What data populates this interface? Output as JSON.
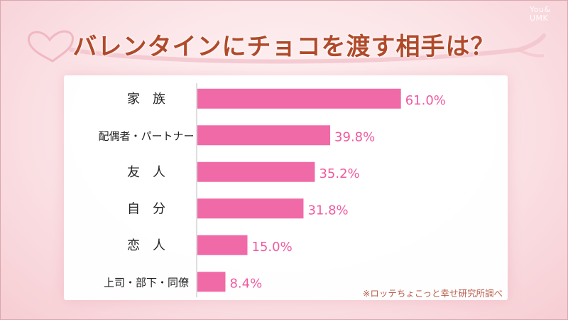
{
  "watermark": {
    "line1": "You&",
    "line2": "UMK"
  },
  "title": "バレンタインにチョコを渡す相手は？",
  "source": "※ロッテちょこっと幸せ研究所調べ",
  "colors": {
    "bar": "#f06aa8",
    "value_text": "#f05aa0",
    "label_text": "#222222",
    "axis": "#bdbdbd"
  },
  "chart_data": {
    "type": "bar",
    "orientation": "horizontal",
    "title": "バレンタインにチョコを渡す相手は？",
    "categories": [
      "家　族",
      "配偶者・パートナー",
      "友　人",
      "自　分",
      "恋　人",
      "上司・部下・同僚"
    ],
    "values": [
      61.0,
      39.8,
      35.2,
      31.8,
      15.0,
      8.4
    ],
    "value_labels": [
      "61.0%",
      "39.8%",
      "35.2%",
      "31.8%",
      "15.0%",
      "8.4%"
    ],
    "unit": "%",
    "xlim": [
      0,
      100
    ],
    "grid": false,
    "legend": "none"
  }
}
